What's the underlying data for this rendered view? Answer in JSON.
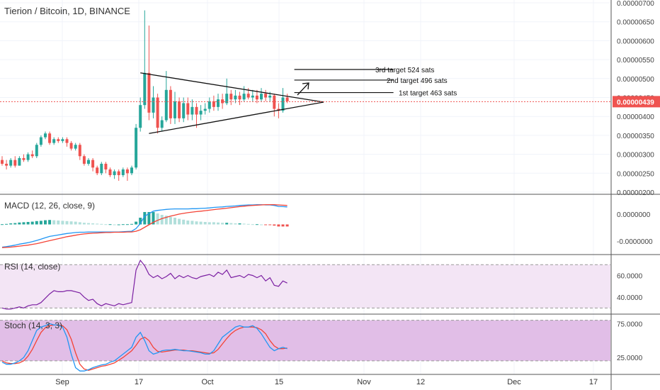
{
  "title": "Tierion / Bitcoin, 1D, BINANCE",
  "colors": {
    "up": "#26a69a",
    "down": "#ef5350",
    "macd": "#2196f3",
    "signal": "#f44336",
    "rsi": "#7b1fa2",
    "stochK": "#2196f3",
    "stochD": "#f44336"
  },
  "chart_data": {
    "type": "candlestick",
    "title": "Tierion / Bitcoin, 1D, BINANCE",
    "x_ticks": [
      "Sep",
      "17",
      "Oct",
      "15",
      "Nov",
      "12",
      "Dec",
      "17"
    ],
    "price_axis": {
      "ticks": [
        "0.00000700",
        "0.00000650",
        "0.00000600",
        "0.00000550",
        "0.00000500",
        "0.00000450",
        "0.00000400",
        "0.00000350",
        "0.00000300",
        "0.00000250",
        "0.00000200"
      ],
      "ylim": [
        1.95e-06,
        7.05e-06
      ],
      "last_price_label": "0.00000439"
    },
    "candles": [
      [
        2.85,
        2.75,
        2.95,
        2.7
      ],
      [
        2.75,
        2.7,
        2.85,
        2.6
      ],
      [
        2.7,
        2.85,
        2.9,
        2.65
      ],
      [
        2.85,
        2.7,
        2.95,
        2.65
      ],
      [
        2.7,
        2.9,
        2.95,
        2.7
      ],
      [
        2.9,
        2.85,
        3.0,
        2.8
      ],
      [
        2.85,
        3.0,
        3.05,
        2.8
      ],
      [
        3.0,
        2.95,
        3.1,
        2.9
      ],
      [
        2.95,
        3.25,
        3.3,
        2.9
      ],
      [
        3.25,
        3.45,
        3.5,
        3.2
      ],
      [
        3.45,
        3.55,
        3.6,
        3.4
      ],
      [
        3.55,
        3.3,
        3.6,
        3.25
      ],
      [
        3.3,
        3.4,
        3.45,
        3.25
      ],
      [
        3.4,
        3.35,
        3.45,
        3.3
      ],
      [
        3.35,
        3.4,
        3.45,
        3.3
      ],
      [
        3.4,
        3.3,
        3.45,
        3.2
      ],
      [
        3.3,
        3.15,
        3.35,
        3.1
      ],
      [
        3.15,
        3.25,
        3.3,
        3.1
      ],
      [
        3.25,
        2.95,
        3.3,
        2.85
      ],
      [
        2.95,
        2.75,
        3.0,
        2.7
      ],
      [
        2.75,
        2.85,
        2.9,
        2.7
      ],
      [
        2.85,
        2.65,
        2.9,
        2.55
      ],
      [
        2.65,
        2.5,
        2.7,
        2.45
      ],
      [
        2.5,
        2.75,
        2.8,
        2.45
      ],
      [
        2.75,
        2.6,
        2.8,
        2.5
      ],
      [
        2.6,
        2.45,
        2.65,
        2.4
      ],
      [
        2.45,
        2.55,
        2.6,
        2.35
      ],
      [
        2.55,
        2.45,
        2.6,
        2.3
      ],
      [
        2.45,
        2.6,
        2.65,
        2.4
      ],
      [
        2.6,
        2.5,
        2.65,
        2.3
      ],
      [
        2.5,
        2.65,
        2.7,
        2.45
      ],
      [
        2.65,
        3.7,
        3.8,
        2.6
      ],
      [
        3.7,
        4.3,
        4.5,
        3.6
      ],
      [
        4.3,
        5.15,
        6.8,
        4.2
      ],
      [
        5.15,
        4.1,
        6.4,
        3.9
      ],
      [
        4.1,
        4.5,
        4.8,
        3.95
      ],
      [
        4.5,
        3.7,
        4.6,
        3.55
      ],
      [
        3.7,
        3.9,
        4.0,
        3.6
      ],
      [
        3.9,
        4.7,
        5.2,
        3.85
      ],
      [
        4.7,
        3.95,
        4.8,
        3.8
      ],
      [
        3.95,
        4.4,
        4.65,
        3.8
      ],
      [
        4.4,
        3.95,
        4.5,
        3.85
      ],
      [
        3.95,
        4.35,
        4.5,
        3.85
      ],
      [
        4.35,
        4.05,
        4.5,
        3.9
      ],
      [
        4.05,
        4.25,
        4.45,
        3.9
      ],
      [
        4.25,
        4.05,
        4.35,
        3.7
      ],
      [
        4.05,
        4.15,
        4.3,
        3.9
      ],
      [
        4.15,
        4.2,
        4.35,
        4.05
      ],
      [
        4.2,
        4.4,
        4.5,
        4.1
      ],
      [
        4.4,
        4.25,
        4.55,
        4.15
      ],
      [
        4.25,
        4.45,
        4.6,
        4.15
      ],
      [
        4.45,
        4.35,
        4.6,
        4.2
      ],
      [
        4.35,
        4.6,
        5.0,
        4.3
      ],
      [
        4.6,
        4.45,
        4.7,
        4.3
      ],
      [
        4.45,
        4.55,
        4.7,
        4.35
      ],
      [
        4.55,
        4.45,
        4.65,
        4.3
      ],
      [
        4.45,
        4.6,
        4.8,
        4.4
      ],
      [
        4.6,
        4.5,
        4.75,
        4.45
      ],
      [
        4.5,
        4.55,
        4.7,
        4.4
      ],
      [
        4.55,
        4.45,
        4.7,
        4.35
      ],
      [
        4.45,
        4.6,
        4.75,
        4.4
      ],
      [
        4.6,
        4.5,
        4.7,
        4.4
      ],
      [
        4.5,
        4.55,
        4.65,
        4.4
      ],
      [
        4.55,
        4.2,
        4.6,
        4.0
      ],
      [
        4.2,
        4.15,
        4.35,
        3.95
      ],
      [
        4.15,
        4.5,
        4.75,
        4.1
      ],
      [
        4.5,
        4.4,
        4.6,
        4.35
      ]
    ],
    "annotations": [
      "3rd target 524 sats",
      "2nd target 496 sats",
      "1st target  463 sats"
    ],
    "macd": {
      "label": "MACD (12, 26, close, 9)",
      "ticks": [
        "0.0000000",
        "-0.0000000"
      ],
      "macd": [
        -0.9,
        -0.88,
        -0.85,
        -0.82,
        -0.78,
        -0.75,
        -0.72,
        -0.68,
        -0.63,
        -0.58,
        -0.52,
        -0.47,
        -0.44,
        -0.41,
        -0.38,
        -0.35,
        -0.33,
        -0.31,
        -0.3,
        -0.3,
        -0.29,
        -0.29,
        -0.29,
        -0.29,
        -0.29,
        -0.29,
        -0.29,
        -0.29,
        -0.28,
        -0.27,
        -0.26,
        -0.15,
        0.05,
        0.35,
        0.45,
        0.55,
        0.58,
        0.6,
        0.62,
        0.63,
        0.64,
        0.64,
        0.64,
        0.64,
        0.65,
        0.65,
        0.66,
        0.67,
        0.68,
        0.7,
        0.71,
        0.72,
        0.74,
        0.75,
        0.76,
        0.78,
        0.79,
        0.8,
        0.8,
        0.81,
        0.81,
        0.8,
        0.8,
        0.78,
        0.74,
        0.73,
        0.72
      ],
      "signal": [
        -0.92,
        -0.91,
        -0.9,
        -0.88,
        -0.86,
        -0.84,
        -0.82,
        -0.79,
        -0.76,
        -0.72,
        -0.68,
        -0.64,
        -0.6,
        -0.56,
        -0.52,
        -0.48,
        -0.45,
        -0.42,
        -0.39,
        -0.37,
        -0.35,
        -0.34,
        -0.33,
        -0.32,
        -0.31,
        -0.31,
        -0.3,
        -0.3,
        -0.3,
        -0.29,
        -0.29,
        -0.26,
        -0.2,
        -0.1,
        0.0,
        0.1,
        0.18,
        0.25,
        0.3,
        0.35,
        0.39,
        0.43,
        0.46,
        0.49,
        0.51,
        0.53,
        0.55,
        0.57,
        0.59,
        0.61,
        0.63,
        0.65,
        0.67,
        0.69,
        0.71,
        0.73,
        0.75,
        0.77,
        0.78,
        0.79,
        0.8,
        0.81,
        0.81,
        0.81,
        0.8,
        0.79,
        0.78
      ],
      "hist_ylim": [
        -1.0,
        1.0
      ]
    },
    "rsi": {
      "label": "RSI (14, close)",
      "ticks": [
        "60.0000",
        "40.0000"
      ],
      "band": [
        30,
        70
      ],
      "ylim": [
        25,
        78
      ],
      "values": [
        30,
        29,
        29,
        30,
        31,
        30,
        32,
        33,
        33,
        35,
        39,
        43,
        46,
        45,
        45,
        46,
        46,
        45,
        44,
        40,
        37,
        38,
        34,
        32,
        34,
        33,
        32,
        34,
        33,
        34,
        35,
        65,
        74,
        69,
        61,
        58,
        60,
        57,
        59,
        62,
        57,
        60,
        58,
        60,
        58,
        57,
        59,
        60,
        61,
        59,
        63,
        61,
        65,
        58,
        59,
        60,
        58,
        61,
        60,
        58,
        60,
        55,
        58,
        51,
        50,
        55,
        53
      ]
    },
    "stoch": {
      "label": "Stoch (14, 3, 3)",
      "ticks": [
        "75.0000",
        "25.0000"
      ],
      "band": [
        20,
        80
      ],
      "ylim": [
        0,
        88
      ],
      "k": [
        18,
        15,
        15,
        17,
        20,
        25,
        35,
        50,
        65,
        70,
        72,
        75,
        73,
        73,
        70,
        55,
        30,
        10,
        5,
        5,
        7,
        10,
        12,
        14,
        15,
        18,
        20,
        25,
        30,
        35,
        40,
        55,
        62,
        50,
        35,
        30,
        32,
        35,
        36,
        36,
        37,
        36,
        35,
        35,
        34,
        33,
        32,
        30,
        30,
        35,
        45,
        55,
        60,
        65,
        70,
        72,
        70,
        70,
        72,
        68,
        60,
        50,
        40,
        35,
        38,
        40,
        38
      ],
      "d": [
        20,
        17,
        16,
        16,
        17,
        20,
        27,
        37,
        50,
        62,
        69,
        72,
        73,
        73,
        72,
        66,
        52,
        32,
        15,
        8,
        6,
        8,
        10,
        12,
        13,
        15,
        17,
        21,
        25,
        30,
        35,
        43,
        52,
        55,
        50,
        40,
        34,
        33,
        34,
        35,
        36,
        36,
        36,
        35,
        35,
        34,
        33,
        32,
        31,
        32,
        37,
        45,
        53,
        60,
        65,
        68,
        70,
        70,
        70,
        69,
        66,
        60,
        50,
        42,
        38,
        38,
        39
      ]
    }
  }
}
